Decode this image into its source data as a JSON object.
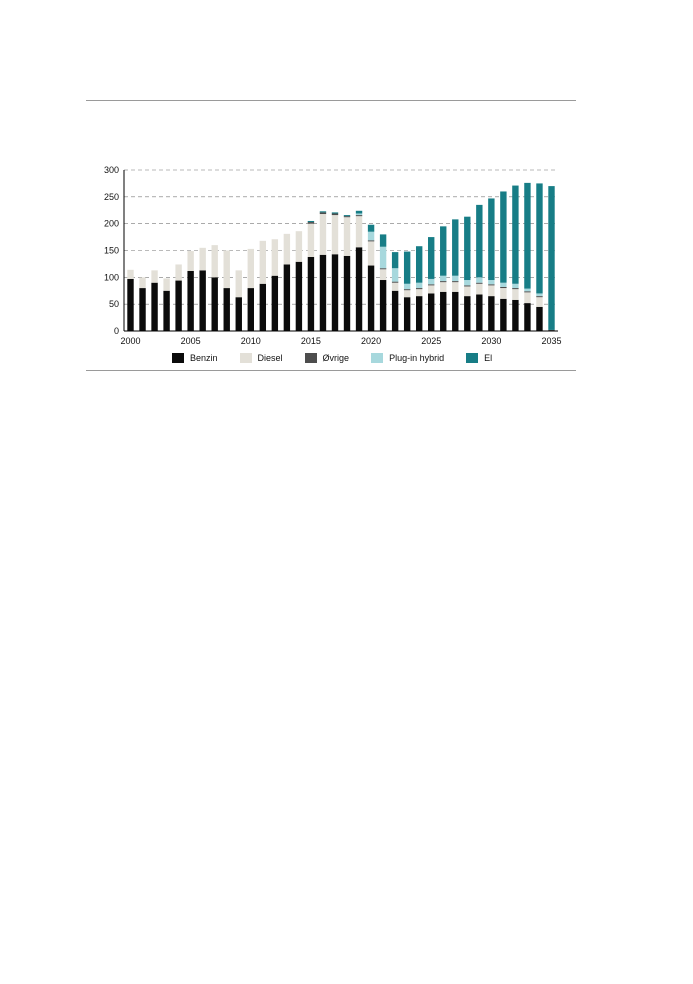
{
  "colors": {
    "benzin": "#0b0b0b",
    "diesel": "#e3e0d8",
    "ovrige": "#4d4d4d",
    "plugin": "#a7d8dd",
    "el": "#177d86",
    "grid": "#777777"
  },
  "chart_data": {
    "type": "bar",
    "stacked": true,
    "title": "",
    "xlabel": "",
    "ylabel": "",
    "ylim": [
      0,
      300
    ],
    "yticks": [
      0,
      50,
      100,
      150,
      200,
      250,
      300
    ],
    "xtick_labels": [
      "2000",
      "2005",
      "2010",
      "2015",
      "2020",
      "2025",
      "2030",
      "2035"
    ],
    "grid": "horizontal-dashed",
    "legend_position": "bottom",
    "categories": [
      2000,
      2001,
      2002,
      2003,
      2004,
      2005,
      2006,
      2007,
      2008,
      2009,
      2010,
      2011,
      2012,
      2013,
      2014,
      2015,
      2016,
      2017,
      2018,
      2019,
      2020,
      2021,
      2022,
      2023,
      2024,
      2025,
      2026,
      2027,
      2028,
      2029,
      2030,
      2031,
      2032,
      2033,
      2034,
      2035
    ],
    "series": [
      {
        "name": "Benzin",
        "color_key": "benzin",
        "values": [
          97,
          80,
          90,
          75,
          94,
          112,
          113,
          100,
          80,
          63,
          80,
          88,
          103,
          124,
          129,
          138,
          142,
          143,
          140,
          156,
          122,
          95,
          75,
          63,
          65,
          70,
          73,
          73,
          65,
          68,
          65,
          60,
          58,
          52,
          45,
          0
        ]
      },
      {
        "name": "Diesel",
        "color_key": "diesel",
        "values": [
          17,
          20,
          23,
          23,
          30,
          37,
          42,
          60,
          70,
          50,
          73,
          80,
          68,
          57,
          57,
          62,
          76,
          73,
          72,
          58,
          45,
          20,
          15,
          13,
          13,
          15,
          18,
          18,
          18,
          20,
          20,
          20,
          20,
          20,
          18,
          0
        ]
      },
      {
        "name": "Øvrige",
        "color_key": "ovrige",
        "values": [
          0,
          0,
          0,
          0,
          0,
          0,
          0,
          0,
          0,
          0,
          0,
          0,
          0,
          0,
          0,
          3,
          3,
          3,
          2,
          2,
          2,
          2,
          2,
          2,
          2,
          2,
          2,
          2,
          2,
          2,
          2,
          2,
          2,
          2,
          2,
          2
        ]
      },
      {
        "name": "Plug-in hybrid",
        "color_key": "plugin",
        "values": [
          0,
          0,
          0,
          0,
          0,
          0,
          0,
          0,
          0,
          0,
          0,
          0,
          0,
          0,
          0,
          0,
          0,
          0,
          0,
          3,
          16,
          40,
          25,
          10,
          10,
          10,
          10,
          10,
          10,
          10,
          8,
          8,
          8,
          5,
          5,
          0
        ]
      },
      {
        "name": "El",
        "color_key": "el",
        "values": [
          0,
          0,
          0,
          0,
          0,
          0,
          0,
          0,
          0,
          0,
          0,
          0,
          0,
          0,
          0,
          2,
          2,
          2,
          2,
          5,
          13,
          23,
          30,
          60,
          68,
          78,
          92,
          105,
          118,
          135,
          152,
          170,
          183,
          197,
          205,
          268
        ]
      }
    ]
  }
}
